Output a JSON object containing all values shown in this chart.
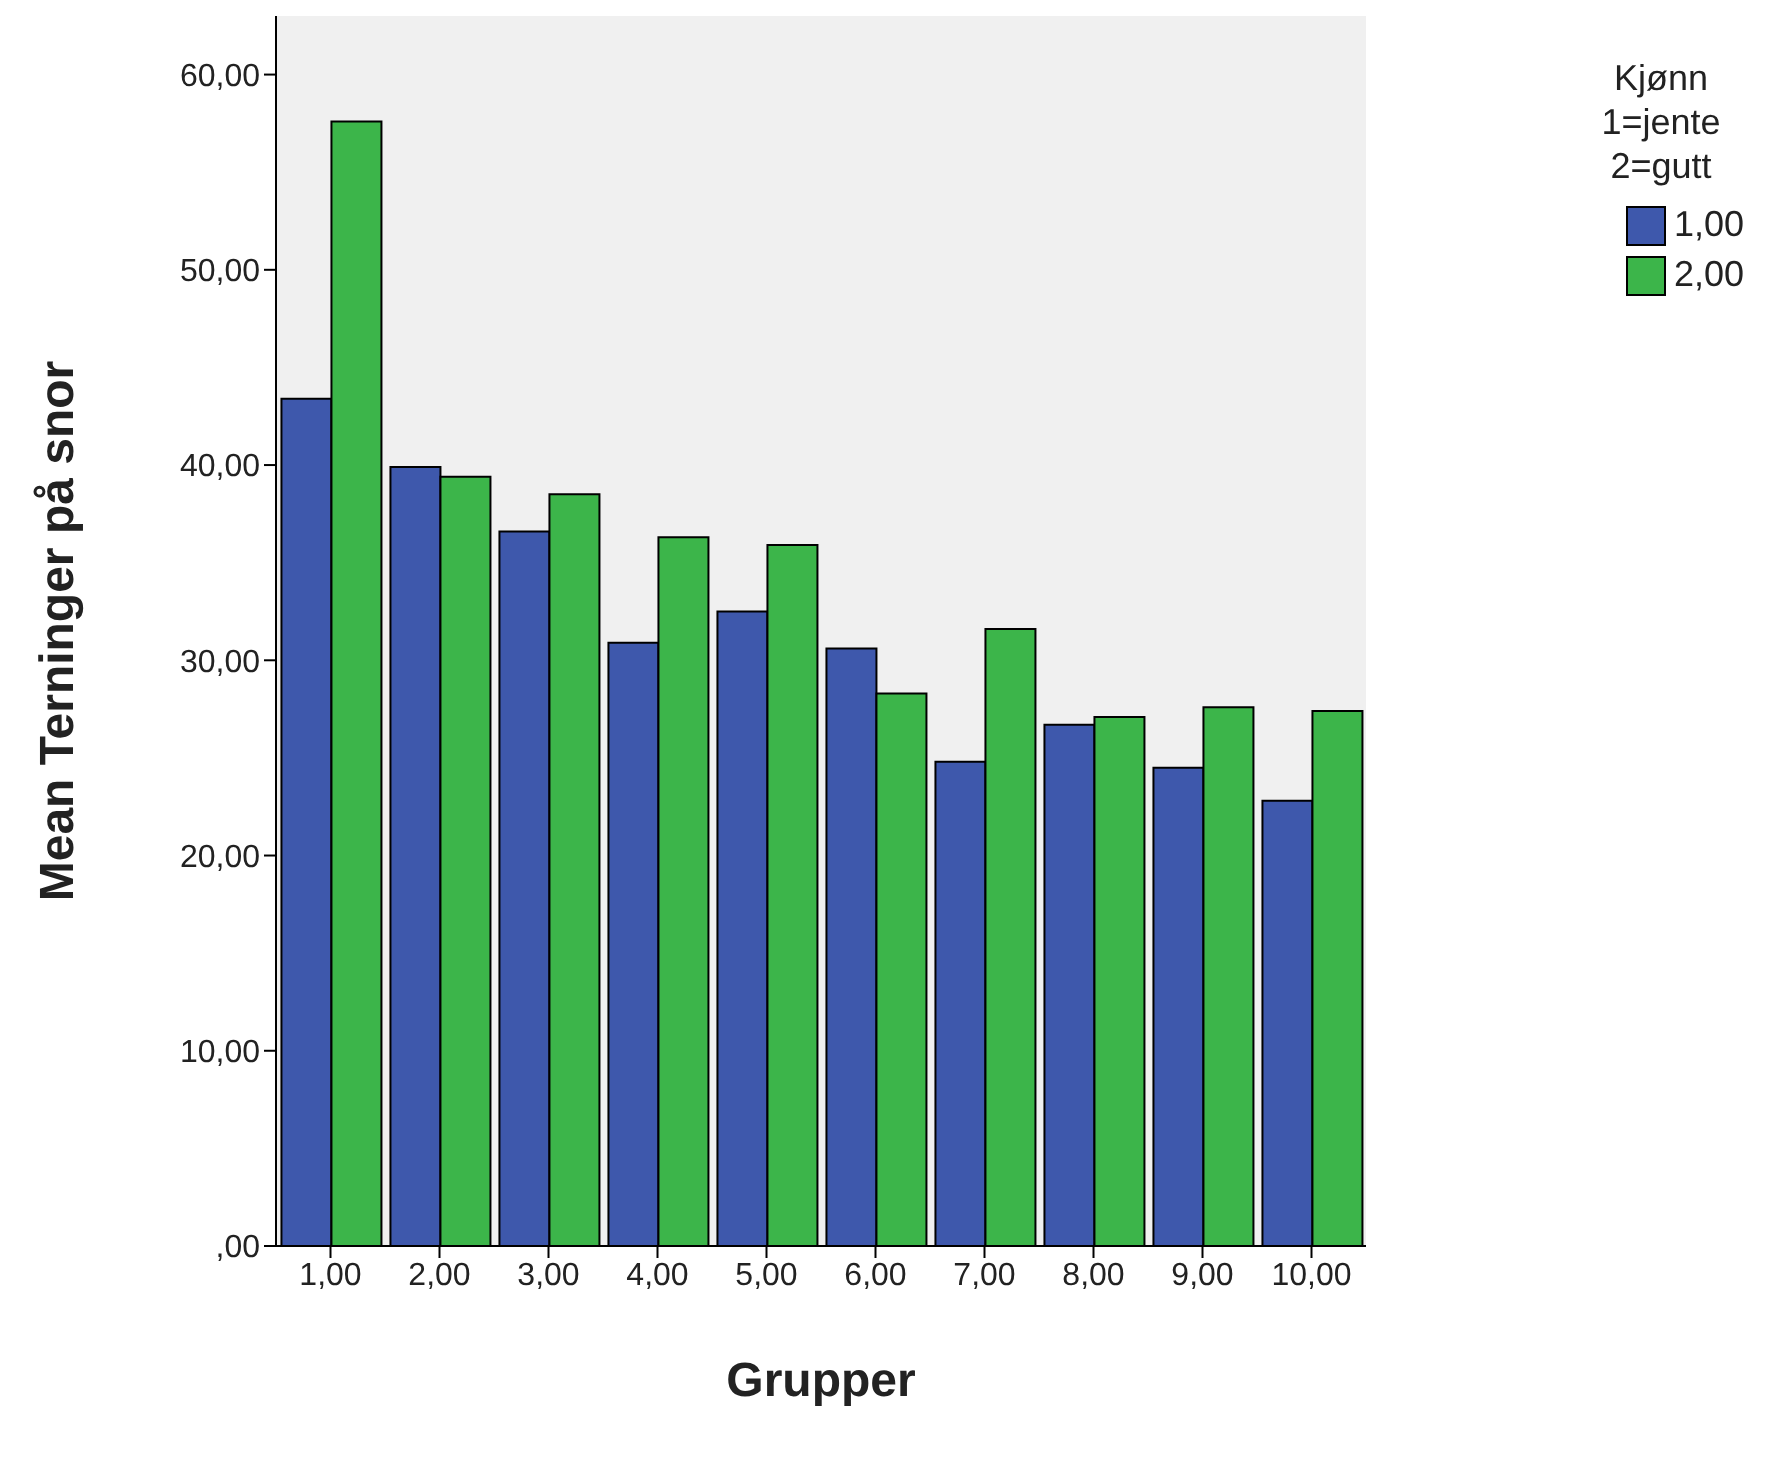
{
  "chart_data": {
    "type": "bar",
    "xlabel": "Grupper",
    "ylabel": "Mean Terninger på snor",
    "legend_title": "Kjønn\n1=jente\n2=gutt",
    "legend": "top right",
    "categories": [
      "1,00",
      "2,00",
      "3,00",
      "4,00",
      "5,00",
      "6,00",
      "7,00",
      "8,00",
      "9,00",
      "10,00"
    ],
    "series": [
      {
        "name": "1,00",
        "color": "#3e58ac",
        "values": [
          43.4,
          39.9,
          36.6,
          30.9,
          32.5,
          30.6,
          24.8,
          26.7,
          24.5,
          22.8
        ]
      },
      {
        "name": "2,00",
        "color": "#3cb54a",
        "values": [
          57.6,
          39.4,
          38.5,
          36.3,
          35.9,
          28.3,
          31.6,
          27.1,
          27.6,
          27.4
        ]
      }
    ],
    "ylim": [
      0,
      63
    ],
    "yticks": [
      {
        "value": 0,
        "label": ",00"
      },
      {
        "value": 10,
        "label": "10,00"
      },
      {
        "value": 20,
        "label": "20,00"
      },
      {
        "value": 30,
        "label": "30,00"
      },
      {
        "value": 40,
        "label": "40,00"
      },
      {
        "value": 50,
        "label": "50,00"
      },
      {
        "value": 60,
        "label": "60,00"
      }
    ]
  }
}
